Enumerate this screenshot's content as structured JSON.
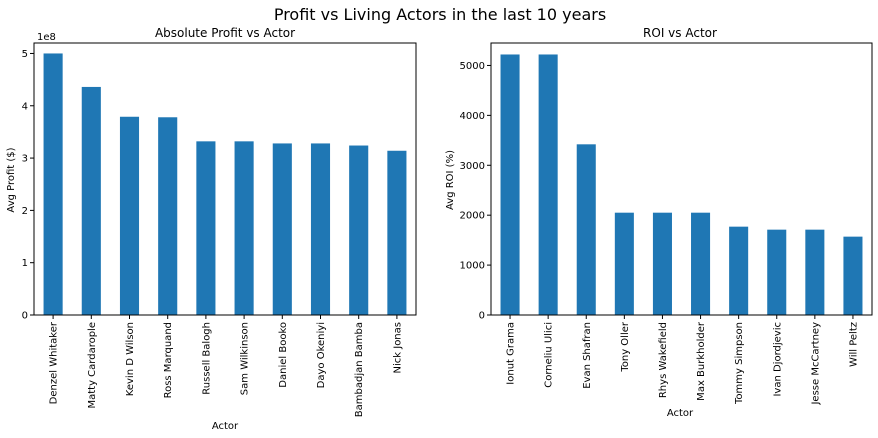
{
  "figure": {
    "title": "Profit vs Living Actors in the last 10 years"
  },
  "chart_data": [
    {
      "type": "bar",
      "title": "Absolute Profit vs Actor",
      "xlabel": "Actor",
      "ylabel": "Avg Profit ($)",
      "y_offset_label": "1e8",
      "ylim": [
        0,
        5.2
      ],
      "yticks": [
        0,
        1,
        2,
        3,
        4,
        5
      ],
      "grid": false,
      "bar_color": "#1f77b4",
      "categories": [
        "Denzel Whitaker",
        "Matty Cardarople",
        "Kevin D Wilson",
        "Ross Marquand",
        "Russell Balogh",
        "Sam Wilkinson",
        "Daniel Booko",
        "Dayo Okeniyi",
        "Bambadjan Bamba",
        "Nick Jonas"
      ],
      "values": [
        5.0,
        4.36,
        3.79,
        3.78,
        3.32,
        3.32,
        3.28,
        3.28,
        3.24,
        3.14
      ]
    },
    {
      "type": "bar",
      "title": "ROI vs Actor",
      "xlabel": "Actor",
      "ylabel": "Avg ROI (%)",
      "ylim": [
        0,
        5450
      ],
      "yticks": [
        0,
        1000,
        2000,
        3000,
        4000,
        5000
      ],
      "grid": false,
      "bar_color": "#1f77b4",
      "categories": [
        "Ionut Grama",
        "Corneliu Ulici",
        "Evan Shafran",
        "Tony Oller",
        "Rhys Wakefield",
        "Max Burkholder",
        "Tommy Simpson",
        "Ivan Djordjevic",
        "Jesse McCartney",
        "Will Peltz"
      ],
      "values": [
        5220,
        5220,
        3420,
        2050,
        2050,
        2050,
        1770,
        1710,
        1710,
        1570
      ]
    }
  ]
}
